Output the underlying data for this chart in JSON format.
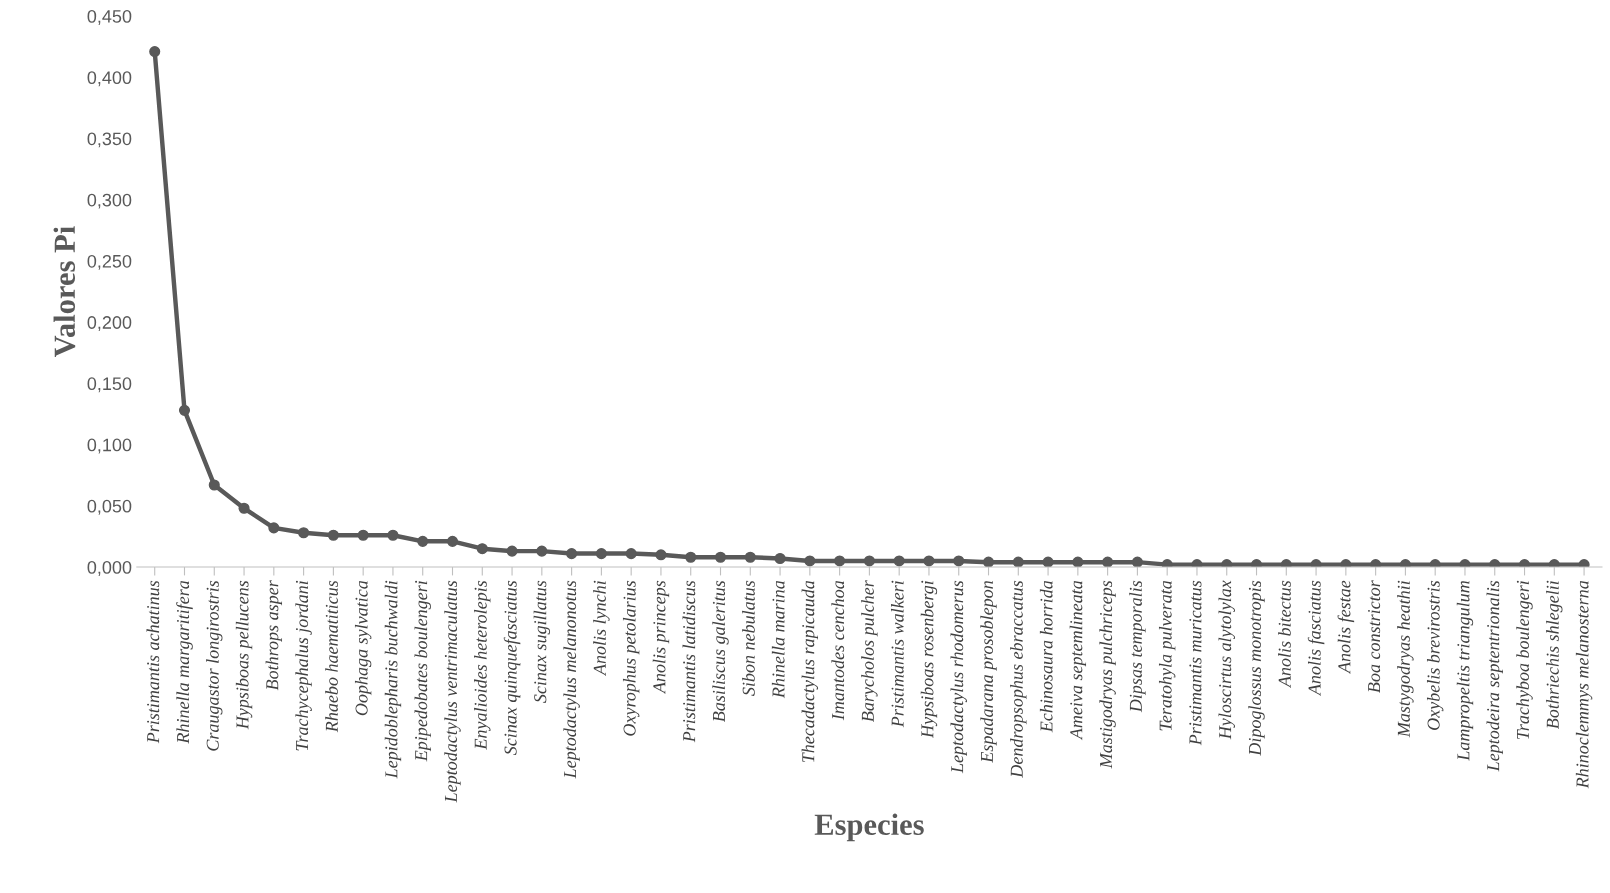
{
  "chart_data": {
    "type": "line",
    "xlabel": "Especies",
    "ylabel": "Valores Pi",
    "categories": [
      "Pristimantis achatinus",
      "Rhinella margaritifera",
      "Craugastor longirostris",
      "Hypsiboas pellucens",
      "Bothrops asper",
      "Trachycephalus jordani",
      "Rhaebo haematiticus",
      "Oophaga sylvatica",
      "Lepidoblepharis buchwaldi",
      "Epipedobates boulengeri",
      "Leptodactylus ventrimaculatus",
      "Enyalioides heterolepis",
      "Scinax quinquefasciatus",
      "Scinax sugillatus",
      "Leptodactylus melanonotus",
      "Anolis lynchi",
      "Oxyrophus petolarius",
      "Anolis princeps",
      "Pristimantis latidiscus",
      "Basiliscus galeritus",
      "Sibon nebulatus",
      "Rhinella marina",
      "Thecadactylus rapicauda",
      "Imantodes cenchoa",
      "Barycholos pulcher",
      "Pristimantis walkeri",
      "Hypsiboas rosenbergi",
      "Leptodactylus rhodomerus",
      "Espadarana prosoblepon",
      "Dendropsophus ebraccatus",
      "Echinosaura horrida",
      "Ameiva septemlineata",
      "Mastigodryas pulchriceps",
      "Dipsas temporalis",
      "Teratohyla pulverata",
      "Pristimantis muricatus",
      "Hyloscirtus alytolylax",
      "Dipoglossus monotropis",
      "Anolis bitectus",
      "Anolis fasciatus",
      "Anolis festae",
      "Boa constrictor",
      "Mastygodryas heathii",
      "Oxybelis brevirostris",
      "Lampropeltis triangulum",
      "Leptodeira septentrionalis",
      "Trachyboa boulengeri",
      "Bothriechis shlegelii",
      "Rhinoclemmys melanosterna"
    ],
    "series": [
      {
        "color": "#595959",
        "values": [
          0.421,
          0.128,
          0.067,
          0.048,
          0.032,
          0.028,
          0.026,
          0.026,
          0.026,
          0.021,
          0.021,
          0.015,
          0.013,
          0.013,
          0.011,
          0.011,
          0.011,
          0.01,
          0.008,
          0.008,
          0.008,
          0.007,
          0.005,
          0.005,
          0.005,
          0.005,
          0.005,
          0.005,
          0.004,
          0.004,
          0.004,
          0.004,
          0.004,
          0.004,
          0.002,
          0.002,
          0.002,
          0.002,
          0.002,
          0.002,
          0.002,
          0.002,
          0.002,
          0.002,
          0.002,
          0.002,
          0.002,
          0.002,
          0.002
        ]
      }
    ],
    "ylim": [
      0,
      0.45
    ],
    "yticks": [
      {
        "value": 0,
        "label": "0,000"
      },
      {
        "value": 0.05,
        "label": "0,050"
      },
      {
        "value": 0.1,
        "label": "0,100"
      },
      {
        "value": 0.15,
        "label": "0,150"
      },
      {
        "value": 0.2,
        "label": "0,200"
      },
      {
        "value": 0.25,
        "label": "0,250"
      },
      {
        "value": 0.3,
        "label": "0,300"
      },
      {
        "value": 0.35,
        "label": "0,350"
      },
      {
        "value": 0.4,
        "label": "0,400"
      },
      {
        "value": 0.45,
        "label": "0,450"
      }
    ],
    "marker": "circle",
    "line_style": "solid"
  }
}
